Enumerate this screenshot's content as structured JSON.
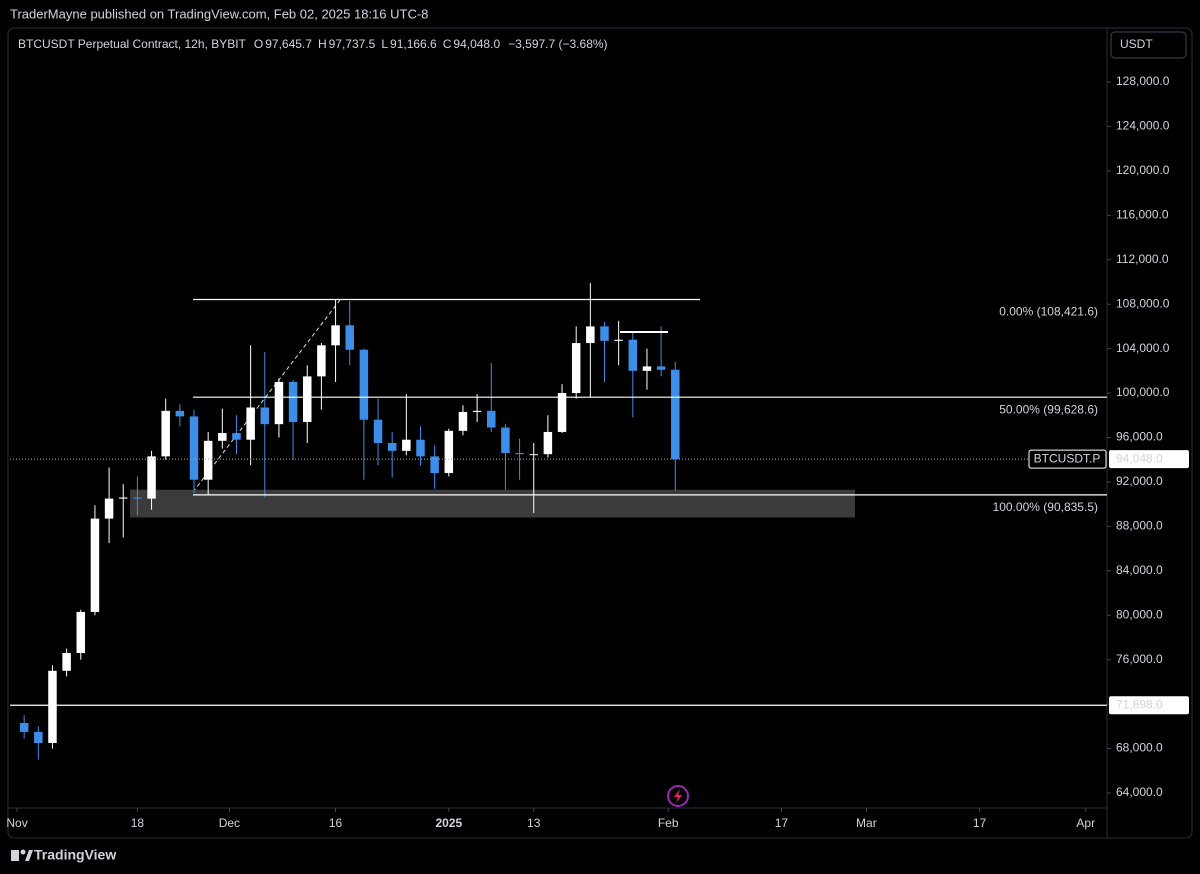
{
  "header": {
    "publisher": "TraderMayne published on TradingView.com, Feb 02, 2025 18:16 UTC-8"
  },
  "footer": {
    "brand": "TradingView"
  },
  "chart_data": {
    "type": "candlestick",
    "symbol": "BTCUSDT Perpetual Contract, 12h, BYBIT",
    "ohlc_legend": [
      {
        "key": "O",
        "value": "97,645.7"
      },
      {
        "key": "H",
        "value": "97,737.5"
      },
      {
        "key": "L",
        "value": "91,166.6"
      },
      {
        "key": "C",
        "value": "94,048.0"
      }
    ],
    "change": "−3,597.7 (−3.68%)",
    "currency": "USDT",
    "up_color": "#ffffff",
    "down_color": "#3d8ee8",
    "x": [
      "2024-11-01",
      "2024-11-03",
      "2024-11-05",
      "2024-11-07",
      "2024-11-09",
      "2024-11-11",
      "2024-11-13",
      "2024-11-15",
      "2024-11-17",
      "2024-11-19",
      "2024-11-21",
      "2024-11-23",
      "2024-11-25",
      "2024-11-27",
      "2024-11-29",
      "2024-12-01",
      "2024-12-03",
      "2024-12-05",
      "2024-12-07",
      "2024-12-09",
      "2024-12-11",
      "2024-12-13",
      "2024-12-15",
      "2024-12-17",
      "2024-12-19",
      "2024-12-21",
      "2024-12-23",
      "2024-12-25",
      "2024-12-27",
      "2024-12-29",
      "2024-12-31",
      "2025-01-02",
      "2025-01-04",
      "2025-01-06",
      "2025-01-08",
      "2025-01-10",
      "2025-01-12",
      "2025-01-14",
      "2025-01-16",
      "2025-01-18",
      "2025-01-20",
      "2025-01-22",
      "2025-01-24",
      "2025-01-26",
      "2025-01-28",
      "2025-01-30",
      "2025-02-01"
    ],
    "open": [
      70300,
      69500,
      68500,
      75000,
      76600,
      80300,
      88700,
      90500,
      90600,
      90500,
      94300,
      98400,
      97900,
      92200,
      95700,
      96400,
      95800,
      98700,
      97200,
      101000,
      97400,
      101500,
      104300,
      106100,
      103900,
      97600,
      95500,
      94800,
      95800,
      94300,
      92800,
      96600,
      98300,
      98400,
      96900,
      94600,
      94500,
      94500,
      96500,
      100000,
      104500,
      106000,
      104700,
      104800,
      102000,
      102400,
      102100
    ],
    "high": [
      71000,
      70000,
      75500,
      77000,
      80500,
      89900,
      93300,
      91800,
      92500,
      94800,
      99500,
      99000,
      98500,
      96500,
      98600,
      98000,
      104300,
      103700,
      101300,
      101200,
      102500,
      104500,
      108400,
      108300,
      104000,
      99500,
      96500,
      99900,
      97000,
      95300,
      96800,
      98900,
      99900,
      102700,
      97200,
      95900,
      95500,
      98000,
      100800,
      106000,
      109900,
      106400,
      106500,
      105500,
      104000,
      106000,
      102800
    ],
    "low": [
      68900,
      67000,
      68000,
      74500,
      76000,
      80000,
      86500,
      87000,
      89000,
      89500,
      94000,
      97000,
      91000,
      90800,
      95000,
      94500,
      93500,
      90600,
      96000,
      94000,
      95500,
      98500,
      101000,
      102500,
      92200,
      93500,
      92400,
      94400,
      93500,
      91400,
      92500,
      96200,
      97400,
      96500,
      91300,
      92200,
      89200,
      94200,
      96400,
      99500,
      99600,
      101000,
      102500,
      97800,
      100300,
      101500,
      91200
    ],
    "close": [
      69500,
      68500,
      75000,
      76600,
      80300,
      88700,
      90500,
      90600,
      90500,
      94300,
      98400,
      97900,
      92200,
      95700,
      96400,
      95800,
      98700,
      97200,
      101000,
      97400,
      101500,
      104300,
      106100,
      103900,
      97600,
      95500,
      94800,
      95800,
      94300,
      92800,
      96600,
      98300,
      98400,
      96900,
      94600,
      94500,
      94500,
      96500,
      100000,
      104500,
      106000,
      104700,
      104800,
      102000,
      102400,
      102100,
      94048
    ],
    "xlim": [
      "2024-10-31",
      "2025-04-04"
    ],
    "xticks": [
      {
        "value": "2024-11-01",
        "label": "Nov"
      },
      {
        "value": "2024-11-18",
        "label": "18"
      },
      {
        "value": "2024-12-01",
        "label": "Dec"
      },
      {
        "value": "2024-12-16",
        "label": "16"
      },
      {
        "value": "2025-01-01",
        "label": "2025"
      },
      {
        "value": "2025-01-13",
        "label": "13"
      },
      {
        "value": "2025-02-01",
        "label": "Feb"
      },
      {
        "value": "2025-02-17",
        "label": "17"
      },
      {
        "value": "2025-03-01",
        "label": "Mar"
      },
      {
        "value": "2025-03-17",
        "label": "17"
      },
      {
        "value": "2025-04-01",
        "label": "Apr"
      }
    ],
    "ylim": [
      62650,
      132680
    ],
    "yticks": [
      {
        "value": 64000,
        "label": "64,000.0"
      },
      {
        "value": 68000,
        "label": "68,000.0"
      },
      {
        "value": 72000,
        "label": "72,000.0"
      },
      {
        "value": 76000,
        "label": "76,000.0"
      },
      {
        "value": 80000,
        "label": "80,000.0"
      },
      {
        "value": 84000,
        "label": "84,000.0"
      },
      {
        "value": 88000,
        "label": "88,000.0"
      },
      {
        "value": 92000,
        "label": "92,000.0"
      },
      {
        "value": 96000,
        "label": "96,000.0"
      },
      {
        "value": 100000,
        "label": "100,000.0"
      },
      {
        "value": 104000,
        "label": "104,000.0"
      },
      {
        "value": 108000,
        "label": "108,000.0"
      },
      {
        "value": 112000,
        "label": "112,000.0"
      },
      {
        "value": 116000,
        "label": "116,000.0"
      },
      {
        "value": 120000,
        "label": "120,000.0"
      },
      {
        "value": 124000,
        "label": "124,000.0"
      },
      {
        "value": 128000,
        "label": "128,000.0"
      }
    ],
    "fib_levels": [
      {
        "value": 108421.6,
        "label": "0.00% (108,421.6)"
      },
      {
        "value": 99628.6,
        "label": "50.00% (99,628.6)"
      },
      {
        "value": 90835.5,
        "label": "100.00% (90,835.5)"
      }
    ],
    "zone": [
      88800,
      91300
    ],
    "range_top": 105500,
    "support_line": {
      "value": 71898,
      "label": "71,898.0"
    },
    "price_line": {
      "name": "BTCUSDT.P",
      "value": 94048,
      "label": "94,048.0"
    }
  }
}
